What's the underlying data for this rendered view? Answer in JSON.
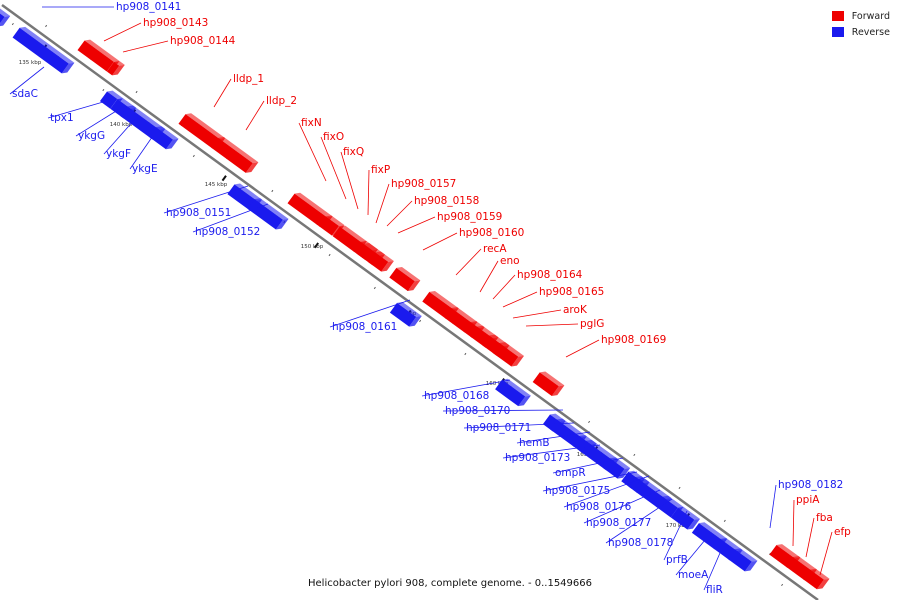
{
  "caption": "Helicobacter pylori 908, complete genome. - 0..1549666",
  "legend": [
    {
      "label": "Forward",
      "color": "#ee0000"
    },
    {
      "label": "Reverse",
      "color": "#1a1aee"
    }
  ],
  "colors": {
    "forward": "#ee0000",
    "reverse": "#1a1aee",
    "backbone": "#777777"
  },
  "ticks": [
    "135 kbp",
    "140 kbp",
    "145 kbp",
    "150 kbp",
    "155 kbp",
    "160 kbp",
    "165 kbp",
    "170 kbp"
  ],
  "genes": [
    {
      "name": "hp908_0141",
      "strand": "reverse"
    },
    {
      "name": "hp908_0143",
      "strand": "forward"
    },
    {
      "name": "hp908_0144",
      "strand": "forward"
    },
    {
      "name": "sdaC",
      "strand": "reverse"
    },
    {
      "name": "tpx1",
      "strand": "reverse"
    },
    {
      "name": "ykgG",
      "strand": "reverse"
    },
    {
      "name": "ykgF",
      "strand": "reverse"
    },
    {
      "name": "ykgE",
      "strand": "reverse"
    },
    {
      "name": "lldp_1",
      "strand": "forward"
    },
    {
      "name": "lldp_2",
      "strand": "forward"
    },
    {
      "name": "hp908_0151",
      "strand": "reverse"
    },
    {
      "name": "hp908_0152",
      "strand": "reverse"
    },
    {
      "name": "fixN",
      "strand": "forward"
    },
    {
      "name": "fixO",
      "strand": "forward"
    },
    {
      "name": "fixQ",
      "strand": "forward"
    },
    {
      "name": "fixP",
      "strand": "forward"
    },
    {
      "name": "hp908_0157",
      "strand": "forward"
    },
    {
      "name": "hp908_0158",
      "strand": "forward"
    },
    {
      "name": "hp908_0159",
      "strand": "forward"
    },
    {
      "name": "hp908_0160",
      "strand": "forward"
    },
    {
      "name": "recA",
      "strand": "forward"
    },
    {
      "name": "eno",
      "strand": "forward"
    },
    {
      "name": "hp908_0164",
      "strand": "forward"
    },
    {
      "name": "hp908_0165",
      "strand": "forward"
    },
    {
      "name": "aroK",
      "strand": "forward"
    },
    {
      "name": "pglG",
      "strand": "forward"
    },
    {
      "name": "hp908_0169",
      "strand": "forward"
    },
    {
      "name": "hp908_0161",
      "strand": "reverse"
    },
    {
      "name": "hp908_0168",
      "strand": "reverse"
    },
    {
      "name": "hp908_0170",
      "strand": "reverse"
    },
    {
      "name": "hp908_0171",
      "strand": "reverse"
    },
    {
      "name": "hemB",
      "strand": "reverse"
    },
    {
      "name": "hp908_0173",
      "strand": "reverse"
    },
    {
      "name": "ompR",
      "strand": "reverse"
    },
    {
      "name": "hp908_0175",
      "strand": "reverse"
    },
    {
      "name": "hp908_0176",
      "strand": "reverse"
    },
    {
      "name": "hp908_0177",
      "strand": "reverse"
    },
    {
      "name": "hp908_0178",
      "strand": "reverse"
    },
    {
      "name": "prfB",
      "strand": "reverse"
    },
    {
      "name": "moeA",
      "strand": "reverse"
    },
    {
      "name": "fliR",
      "strand": "reverse"
    },
    {
      "name": "hp908_0182",
      "strand": "reverse"
    },
    {
      "name": "ppiA",
      "strand": "forward"
    },
    {
      "name": "fba",
      "strand": "forward"
    },
    {
      "name": "efp",
      "strand": "forward"
    }
  ]
}
